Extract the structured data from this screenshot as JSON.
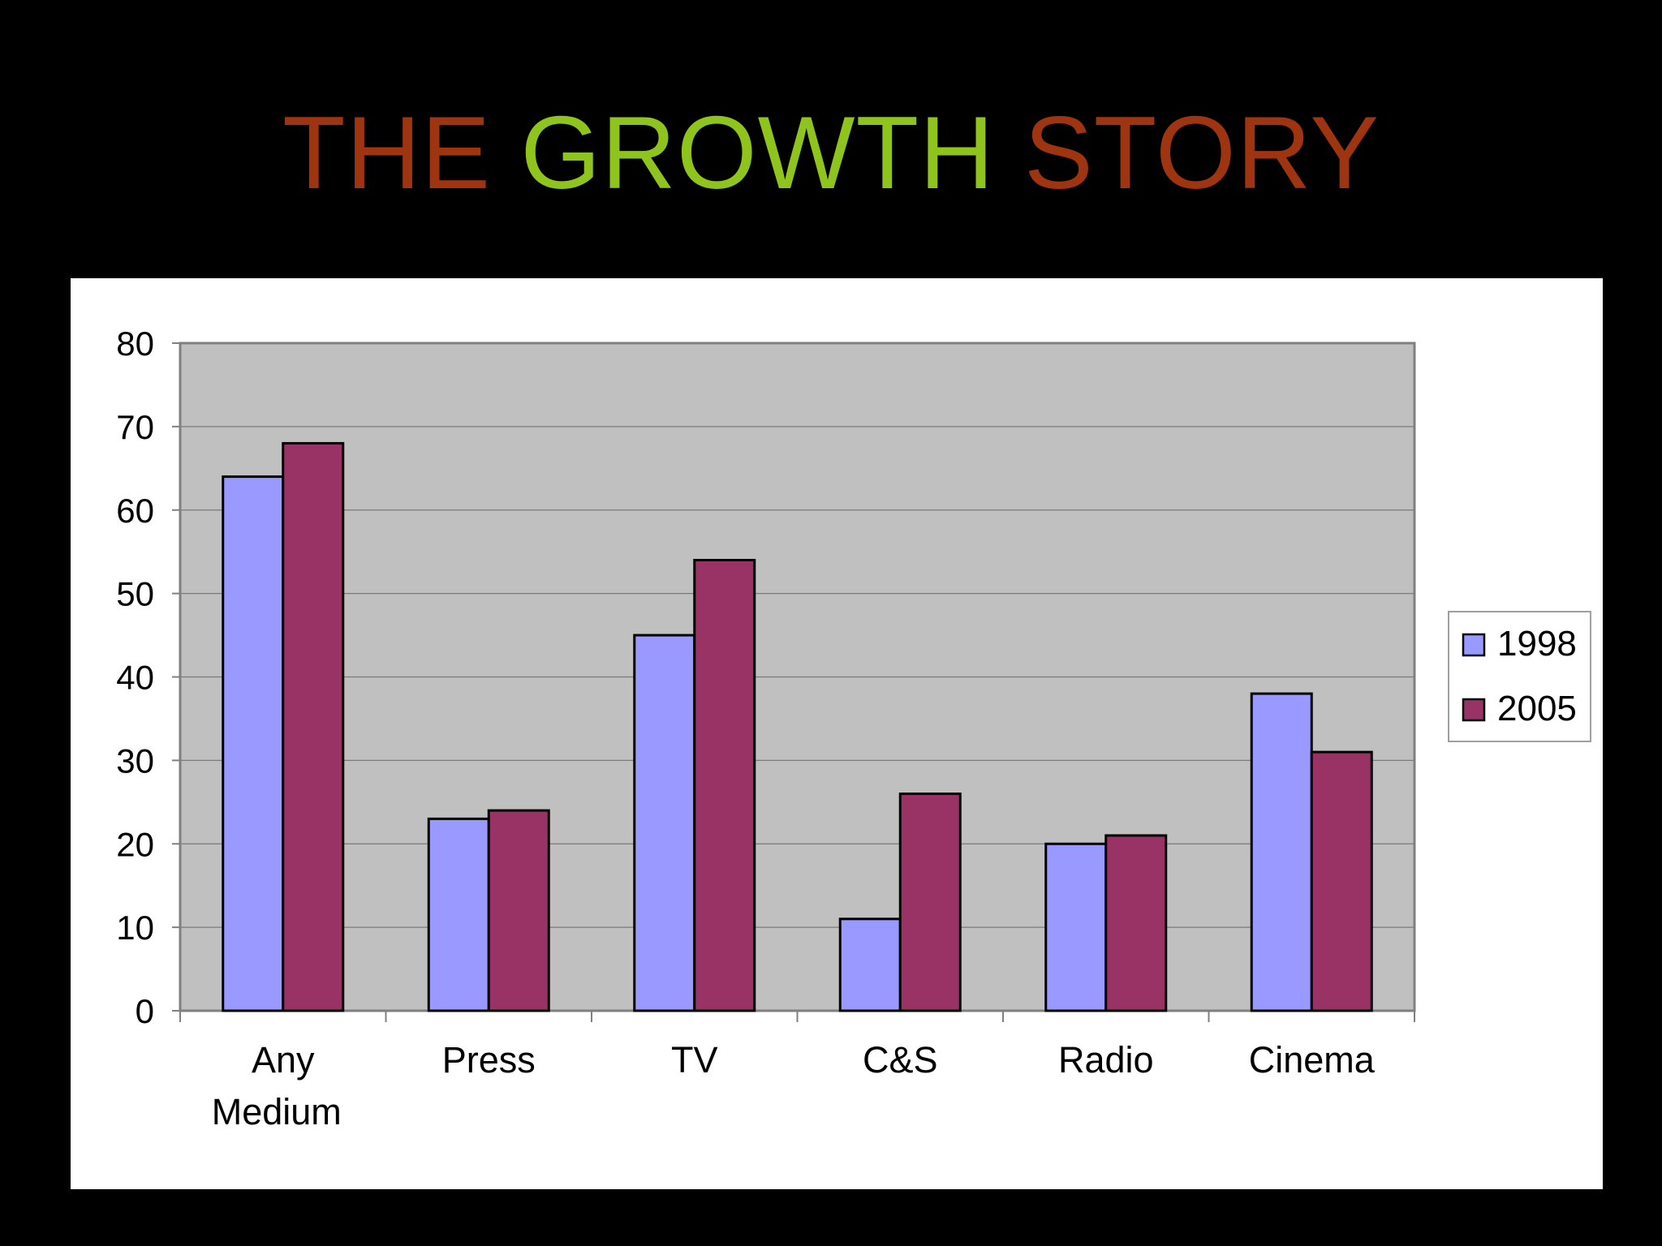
{
  "title": {
    "parts": [
      {
        "text": "THE ",
        "color": "#9e3410"
      },
      {
        "text": "GROWTH",
        "color": "#8fc41c"
      },
      {
        "text": " STORY",
        "color": "#9e3410"
      }
    ]
  },
  "chart_data": {
    "type": "bar",
    "categories": [
      [
        "Any",
        "Medium"
      ],
      [
        "Press"
      ],
      [
        "TV"
      ],
      [
        "C&S"
      ],
      [
        "Radio"
      ],
      [
        "Cinema"
      ]
    ],
    "series": [
      {
        "name": "1998",
        "color": "#9999ff",
        "values": [
          64,
          23,
          45,
          11,
          20,
          38
        ]
      },
      {
        "name": "2005",
        "color": "#993366",
        "values": [
          68,
          24,
          54,
          26,
          21,
          31
        ]
      }
    ],
    "ylim": [
      0,
      80
    ],
    "yticks": [
      0,
      10,
      20,
      30,
      40,
      50,
      60,
      70,
      80
    ],
    "grid": true,
    "plot_background": "#c0c0c0",
    "legend_position": "right"
  }
}
